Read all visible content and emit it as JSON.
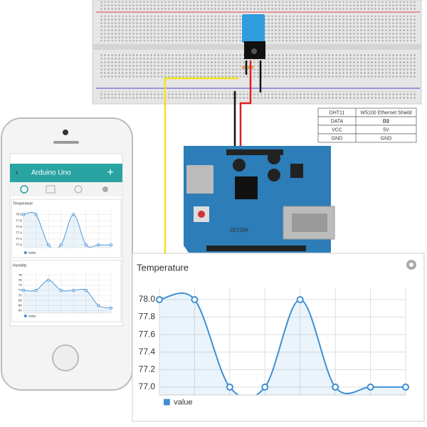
{
  "wiring_table": {
    "rows": [
      [
        "DHT11",
        "W5100 Ethernet Shield"
      ],
      [
        "DATA",
        "D2"
      ],
      [
        "VCC",
        "5V"
      ],
      [
        "GND",
        "GND"
      ]
    ]
  },
  "shield_label": "W5100",
  "app": {
    "title": "Arduino Uno",
    "add_button": "+"
  },
  "chart_data": [
    {
      "type": "line",
      "title": "Temperature",
      "series": [
        {
          "name": "value",
          "color": "#3d8fd6",
          "values": [
            78.0,
            78.0,
            77.0,
            77.0,
            78.0,
            77.0,
            77.0,
            77.0
          ]
        }
      ],
      "ylim": [
        76.91,
        78.13
      ],
      "yticks": [
        {
          "value": 77,
          "label": "77.0"
        },
        {
          "value": 77.2,
          "label": "77.2"
        },
        {
          "value": 77.4,
          "label": "77.4"
        },
        {
          "value": 77.6,
          "label": "77.6"
        },
        {
          "value": 77.8,
          "label": "77.8"
        },
        {
          "value": 78,
          "label": "78.0"
        }
      ],
      "grid": true
    },
    {
      "type": "line",
      "title": "Temperature",
      "series": [
        {
          "name": "value",
          "color": "#3d8fd6",
          "values": [
            78.0,
            78.0,
            77.0,
            77.0,
            78.0,
            77.0,
            77.0,
            77.0
          ]
        }
      ],
      "ylim": [
        76.91,
        78.13
      ],
      "yticks": [
        {
          "value": 77,
          "label": "77.0"
        },
        {
          "value": 77.2,
          "label": "77.2"
        },
        {
          "value": 77.4,
          "label": "77.4"
        },
        {
          "value": 77.6,
          "label": "77.6"
        },
        {
          "value": 77.8,
          "label": "77.8"
        },
        {
          "value": 78,
          "label": "78.0"
        }
      ],
      "grid": true
    },
    {
      "type": "line",
      "title": "Humidity",
      "series": [
        {
          "name": "value",
          "color": "#3d8fd6",
          "values": [
            72,
            72,
            76,
            72,
            72,
            72,
            66,
            65
          ]
        }
      ],
      "ylim": [
        63,
        79
      ],
      "yticks": [
        64,
        66,
        68,
        70,
        72,
        74,
        76,
        78
      ],
      "grid": true
    }
  ]
}
